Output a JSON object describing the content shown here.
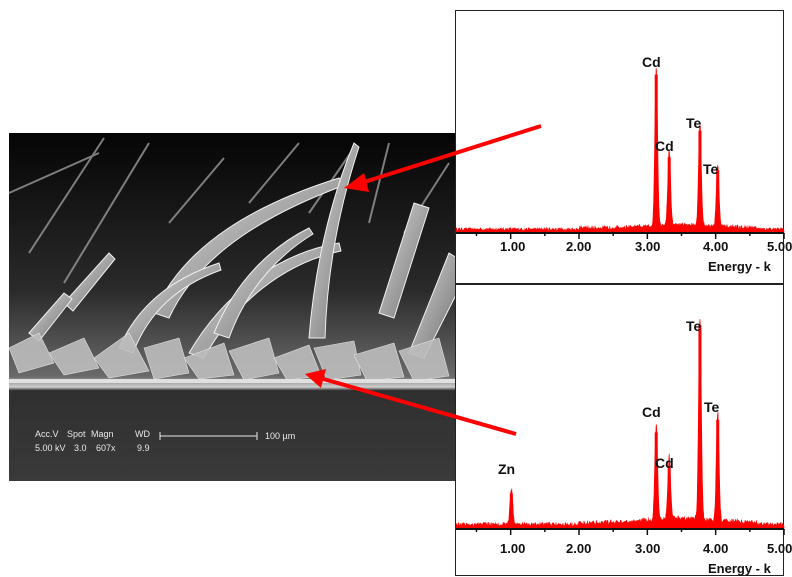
{
  "sem": {
    "headers": [
      "Acc.V",
      "Spot",
      "Magn",
      "WD"
    ],
    "values": [
      "5.00 kV",
      "3.0",
      "607x",
      "9.9"
    ],
    "scalebar_label": "100 µm"
  },
  "colors": {
    "spectrum": "#ff0000",
    "arrow": "#ff0000",
    "axis": "#111111"
  },
  "chart_data": [
    {
      "type": "area",
      "title": "",
      "xlabel": "Energy - k",
      "ylabel": "",
      "xlim": [
        0.2,
        5.0
      ],
      "x_ticks": [
        "1.00",
        "2.00",
        "3.00",
        "4.00",
        "5.00"
      ],
      "peaks": [
        {
          "label": "Cd",
          "energy": 3.13,
          "height": 0.96
        },
        {
          "label": "Cd",
          "energy": 3.32,
          "height": 0.46
        },
        {
          "label": "Te",
          "energy": 3.77,
          "height": 0.62
        },
        {
          "label": "Te",
          "energy": 4.03,
          "height": 0.38
        }
      ]
    },
    {
      "type": "area",
      "title": "",
      "xlabel": "Energy - k",
      "ylabel": "",
      "xlim": [
        0.2,
        5.0
      ],
      "x_ticks": [
        "1.00",
        "2.00",
        "3.00",
        "4.00",
        "5.00"
      ],
      "peaks": [
        {
          "label": "Zn",
          "energy": 1.01,
          "height": 0.17
        },
        {
          "label": "Cd",
          "energy": 3.13,
          "height": 0.46
        },
        {
          "label": "Cd",
          "energy": 3.32,
          "height": 0.3
        },
        {
          "label": "Te",
          "energy": 3.77,
          "height": 0.97
        },
        {
          "label": "Te",
          "energy": 4.03,
          "height": 0.52
        }
      ]
    }
  ]
}
